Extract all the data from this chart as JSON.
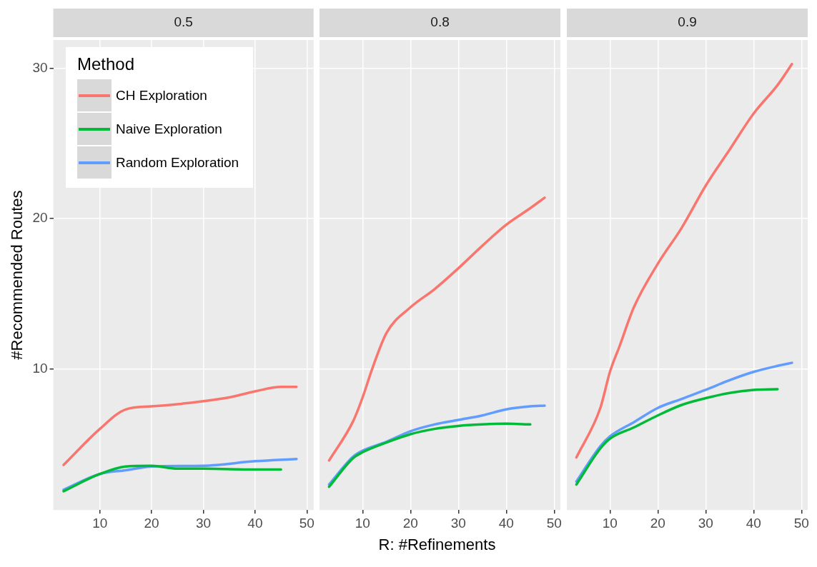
{
  "chart_data": [
    {
      "type": "line",
      "title": "0.5",
      "ylabel": "#Recommended Routes",
      "legend_title": "Method",
      "legend": "top left",
      "grid": true,
      "xlim": [
        1,
        51.3
      ],
      "ylim": [
        0.6,
        31.9
      ],
      "xticks": [
        10,
        20,
        30,
        40,
        50
      ],
      "yticks": [
        10,
        20,
        30
      ],
      "series": [
        {
          "name": "CH Exploration",
          "color": "#f8766d",
          "x": [
            3,
            10,
            15,
            20,
            25,
            30,
            35,
            40,
            45,
            48
          ],
          "values": [
            3.6,
            6.0,
            7.3,
            7.5,
            7.65,
            7.85,
            8.1,
            8.5,
            8.8,
            8.8
          ]
        },
        {
          "name": "Naive Exploration",
          "color": "#00ba38",
          "x": [
            3,
            10,
            15,
            20,
            25,
            30,
            40,
            45
          ],
          "values": [
            1.85,
            3.0,
            3.5,
            3.55,
            3.35,
            3.35,
            3.3,
            3.3
          ]
        },
        {
          "name": "Random Exploration",
          "color": "#619cff",
          "x": [
            3,
            10,
            15,
            20,
            30,
            40,
            48
          ],
          "values": [
            1.95,
            3.0,
            3.25,
            3.5,
            3.55,
            3.85,
            4.0
          ]
        }
      ]
    },
    {
      "type": "line",
      "title": "0.8",
      "xlabel": "R: #Refinements",
      "grid": true,
      "tick_labels": "x",
      "xlim": [
        1,
        51.3
      ],
      "ylim": [
        0.6,
        31.9
      ],
      "xticks": [
        10,
        20,
        30,
        40,
        50
      ],
      "yticks": [
        10,
        20,
        30
      ],
      "series": [
        {
          "color": "#f8766d",
          "x": [
            3,
            8,
            10,
            12,
            15,
            20,
            25,
            30,
            35,
            40,
            45,
            48
          ],
          "values": [
            3.9,
            6.5,
            8.1,
            10,
            12.4,
            14.1,
            15.3,
            16.7,
            18.2,
            19.6,
            20.7,
            21.4
          ]
        },
        {
          "color": "#00ba38",
          "x": [
            3,
            8,
            10,
            15,
            20,
            25,
            30,
            35,
            40,
            45
          ],
          "values": [
            2.15,
            4.05,
            4.45,
            5.1,
            5.65,
            6.0,
            6.2,
            6.3,
            6.35,
            6.3
          ]
        },
        {
          "color": "#619cff",
          "x": [
            3,
            8,
            10,
            15,
            20,
            25,
            30,
            35,
            40,
            45,
            48
          ],
          "values": [
            2.3,
            4.15,
            4.55,
            5.15,
            5.85,
            6.3,
            6.6,
            6.9,
            7.3,
            7.5,
            7.55
          ]
        }
      ]
    },
    {
      "type": "line",
      "title": "0.9",
      "grid": true,
      "tick_labels": "x",
      "xlim": [
        1,
        51.3
      ],
      "ylim": [
        0.6,
        31.9
      ],
      "xticks": [
        10,
        20,
        30,
        40,
        50
      ],
      "yticks": [
        10,
        20,
        30
      ],
      "series": [
        {
          "color": "#f8766d",
          "x": [
            3,
            8,
            10,
            12,
            15,
            20,
            25,
            30,
            35,
            40,
            45,
            48
          ],
          "values": [
            4.1,
            7.4,
            9.8,
            11.5,
            14.1,
            17,
            19.4,
            22.2,
            24.6,
            27,
            28.9,
            30.3
          ]
        },
        {
          "color": "#00ba38",
          "x": [
            3,
            8,
            10,
            15,
            20,
            25,
            30,
            35,
            40,
            45
          ],
          "values": [
            2.3,
            4.7,
            5.35,
            6.1,
            6.9,
            7.6,
            8.05,
            8.4,
            8.6,
            8.65
          ]
        },
        {
          "color": "#619cff",
          "x": [
            3,
            8,
            10,
            15,
            20,
            25,
            30,
            35,
            40,
            45,
            48
          ],
          "values": [
            2.5,
            4.85,
            5.5,
            6.45,
            7.4,
            8.0,
            8.6,
            9.25,
            9.8,
            10.2,
            10.4
          ]
        }
      ]
    }
  ]
}
